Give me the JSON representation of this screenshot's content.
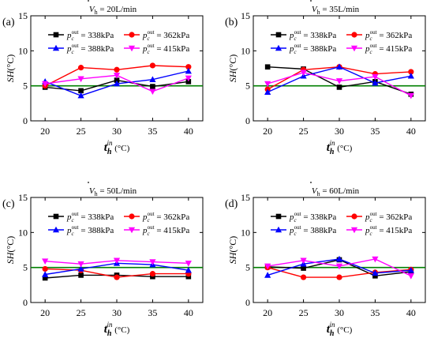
{
  "figure": {
    "colors": {
      "black": "#000000",
      "red": "#ff0000",
      "blue": "#0000ff",
      "magenta": "#ff00ff",
      "green": "#008000"
    }
  },
  "chart_data": [
    {
      "type": "line",
      "panel_label": "(a)",
      "title": "V̇h = 20L/min",
      "xlabel": "t_h^in (°C)",
      "ylabel": "SH(°C)",
      "x": [
        20,
        25,
        30,
        35,
        40
      ],
      "xlim": [
        18,
        42
      ],
      "ylim": [
        0,
        15
      ],
      "yticks": [
        0,
        5,
        10,
        15
      ],
      "reference_line": {
        "y": 5,
        "color": "#008000"
      },
      "legend_position": "top",
      "series": [
        {
          "name": "p_c^out = 338kPa",
          "color": "#000000",
          "marker": "square",
          "values": [
            4.8,
            4.3,
            5.8,
            4.9,
            5.6
          ]
        },
        {
          "name": "p_c^out = 362kPa",
          "color": "#ff0000",
          "marker": "circle",
          "values": [
            5.0,
            7.6,
            7.3,
            7.9,
            7.7
          ]
        },
        {
          "name": "p_c^out = 388kPa",
          "color": "#0000ff",
          "marker": "triangle-up",
          "values": [
            5.6,
            3.6,
            5.3,
            5.9,
            7.1
          ]
        },
        {
          "name": "p_c^out = 415kPa",
          "color": "#ff00ff",
          "marker": "triangle-down",
          "values": [
            5.3,
            6.0,
            6.5,
            4.2,
            6.1
          ]
        }
      ]
    },
    {
      "type": "line",
      "panel_label": "(b)",
      "title": "V̇h = 35L/min",
      "xlabel": "t_h^in (°C)",
      "ylabel": "SH(°C)",
      "x": [
        20,
        25,
        30,
        35,
        40
      ],
      "xlim": [
        18,
        42
      ],
      "ylim": [
        0,
        15
      ],
      "yticks": [
        0,
        5,
        10,
        15
      ],
      "reference_line": {
        "y": 5,
        "color": "#008000"
      },
      "legend_position": "top",
      "series": [
        {
          "name": "p_c^out = 338kPa",
          "color": "#000000",
          "marker": "square",
          "values": [
            7.7,
            7.4,
            4.8,
            5.6,
            3.8
          ]
        },
        {
          "name": "p_c^out = 362kPa",
          "color": "#ff0000",
          "marker": "circle",
          "values": [
            4.5,
            7.3,
            7.7,
            6.7,
            7.0
          ]
        },
        {
          "name": "p_c^out = 388kPa",
          "color": "#0000ff",
          "marker": "triangle-up",
          "values": [
            4.1,
            6.4,
            7.7,
            5.4,
            6.4
          ]
        },
        {
          "name": "p_c^out = 415kPa",
          "color": "#ff00ff",
          "marker": "triangle-down",
          "values": [
            5.3,
            6.9,
            5.7,
            6.3,
            3.6
          ]
        }
      ]
    },
    {
      "type": "line",
      "panel_label": "(c)",
      "title": "V̇h = 50L/min",
      "xlabel": "t_h^in (°C)",
      "ylabel": "SH(°C)",
      "x": [
        20,
        25,
        30,
        35,
        40
      ],
      "xlim": [
        18,
        42
      ],
      "ylim": [
        0,
        15
      ],
      "yticks": [
        0,
        5,
        10,
        15
      ],
      "reference_line": {
        "y": 5,
        "color": "#008000"
      },
      "legend_position": "top",
      "series": [
        {
          "name": "p_c^out = 338kPa",
          "color": "#000000",
          "marker": "square",
          "values": [
            3.5,
            3.9,
            3.9,
            3.7,
            3.7
          ]
        },
        {
          "name": "p_c^out = 362kPa",
          "color": "#ff0000",
          "marker": "circle",
          "values": [
            4.8,
            4.6,
            3.6,
            4.1,
            4.1
          ]
        },
        {
          "name": "p_c^out = 388kPa",
          "color": "#0000ff",
          "marker": "triangle-up",
          "values": [
            4.0,
            4.8,
            5.6,
            5.4,
            4.6
          ]
        },
        {
          "name": "p_c^out = 415kPa",
          "color": "#ff00ff",
          "marker": "triangle-down",
          "values": [
            5.9,
            5.5,
            6.0,
            5.8,
            5.6
          ]
        }
      ]
    },
    {
      "type": "line",
      "panel_label": "(d)",
      "title": "V̇h = 60L/min",
      "xlabel": "t_h^in (°C)",
      "ylabel": "SH(°C)",
      "x": [
        20,
        25,
        30,
        35,
        40
      ],
      "xlim": [
        18,
        42
      ],
      "ylim": [
        0,
        15
      ],
      "yticks": [
        0,
        5,
        10,
        15
      ],
      "reference_line": {
        "y": 5,
        "color": "#008000"
      },
      "legend_position": "top",
      "series": [
        {
          "name": "p_c^out = 338kPa",
          "color": "#000000",
          "marker": "square",
          "values": [
            5.1,
            4.9,
            6.1,
            3.8,
            4.4
          ]
        },
        {
          "name": "p_c^out = 362kPa",
          "color": "#ff0000",
          "marker": "circle",
          "values": [
            5.0,
            3.6,
            3.6,
            4.3,
            4.7
          ]
        },
        {
          "name": "p_c^out = 388kPa",
          "color": "#0000ff",
          "marker": "triangle-up",
          "values": [
            3.9,
            5.5,
            6.2,
            4.2,
            4.6
          ]
        },
        {
          "name": "p_c^out = 415kPa",
          "color": "#ff00ff",
          "marker": "triangle-down",
          "values": [
            5.2,
            6.0,
            5.2,
            6.2,
            3.8
          ]
        }
      ]
    }
  ]
}
